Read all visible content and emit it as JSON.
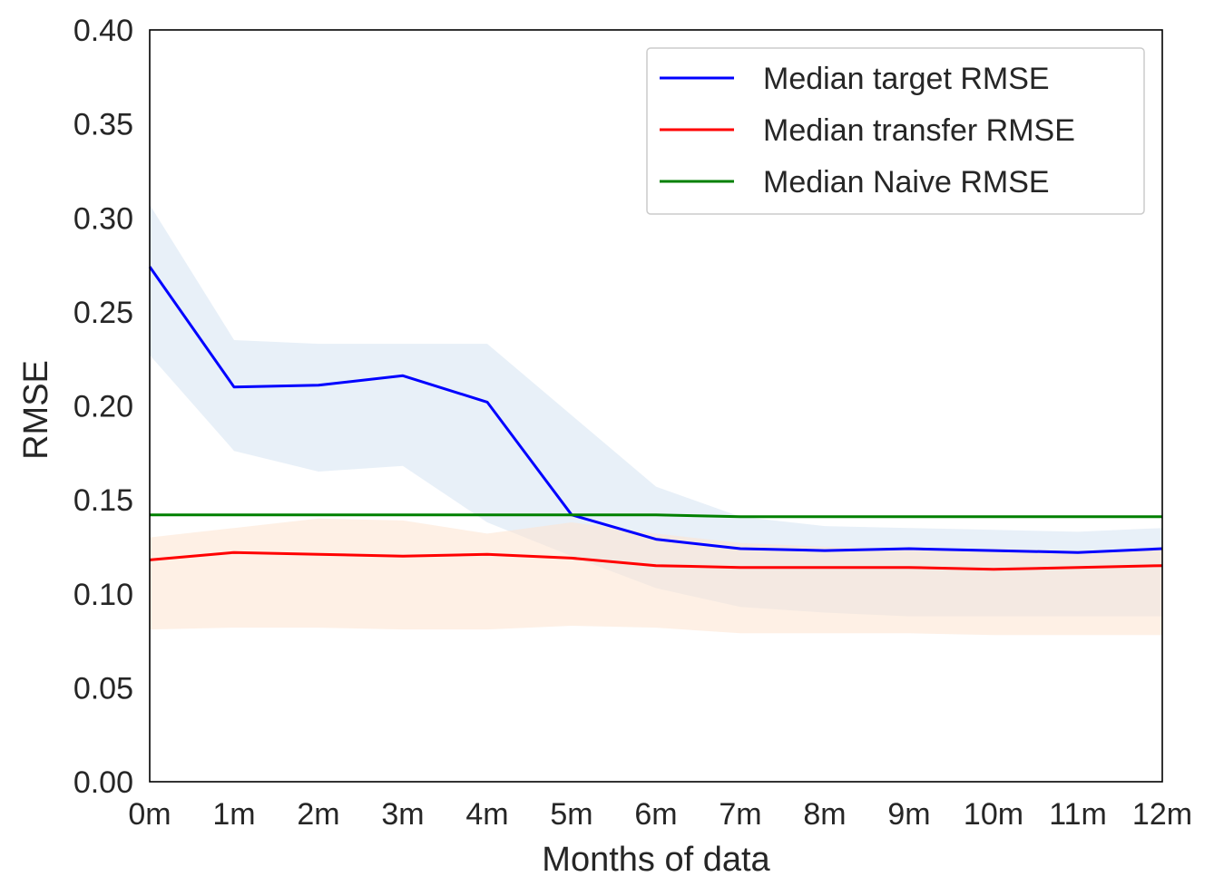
{
  "chart_data": {
    "type": "line",
    "xlabel": "Months of data",
    "ylabel": "RMSE",
    "x": [
      "0m",
      "1m",
      "2m",
      "3m",
      "4m",
      "5m",
      "6m",
      "7m",
      "8m",
      "9m",
      "10m",
      "11m",
      "12m"
    ],
    "ylim": [
      0.0,
      0.4
    ],
    "yticks": [
      "0.00",
      "0.05",
      "0.10",
      "0.15",
      "0.20",
      "0.25",
      "0.30",
      "0.35",
      "0.40"
    ],
    "grid": false,
    "legend_position": "top-right",
    "series": [
      {
        "name": "Median target RMSE",
        "color": "#0000ff",
        "values": [
          0.274,
          0.21,
          0.211,
          0.216,
          0.202,
          0.142,
          0.129,
          0.124,
          0.123,
          0.124,
          0.123,
          0.122,
          0.124
        ],
        "band_lower": [
          0.227,
          0.176,
          0.165,
          0.168,
          0.138,
          0.12,
          0.103,
          0.093,
          0.09,
          0.088,
          0.088,
          0.088,
          0.088
        ],
        "band_upper": [
          0.307,
          0.235,
          0.233,
          0.233,
          0.233,
          0.195,
          0.157,
          0.141,
          0.136,
          0.135,
          0.134,
          0.133,
          0.135
        ],
        "band_color": "#dce8f5"
      },
      {
        "name": "Median transfer RMSE",
        "color": "#ff0000",
        "values": [
          0.118,
          0.122,
          0.121,
          0.12,
          0.121,
          0.119,
          0.115,
          0.114,
          0.114,
          0.114,
          0.113,
          0.114,
          0.115
        ],
        "band_lower": [
          0.081,
          0.082,
          0.082,
          0.081,
          0.081,
          0.083,
          0.082,
          0.079,
          0.079,
          0.079,
          0.078,
          0.078,
          0.078
        ],
        "band_upper": [
          0.13,
          0.135,
          0.14,
          0.139,
          0.132,
          0.138,
          0.132,
          0.127,
          0.125,
          0.124,
          0.124,
          0.123,
          0.124
        ],
        "band_color": "#fde3cf"
      },
      {
        "name": "Median Naive RMSE",
        "color": "#008000",
        "values": [
          0.142,
          0.142,
          0.142,
          0.142,
          0.142,
          0.142,
          0.142,
          0.141,
          0.141,
          0.141,
          0.141,
          0.141,
          0.141
        ]
      }
    ]
  }
}
